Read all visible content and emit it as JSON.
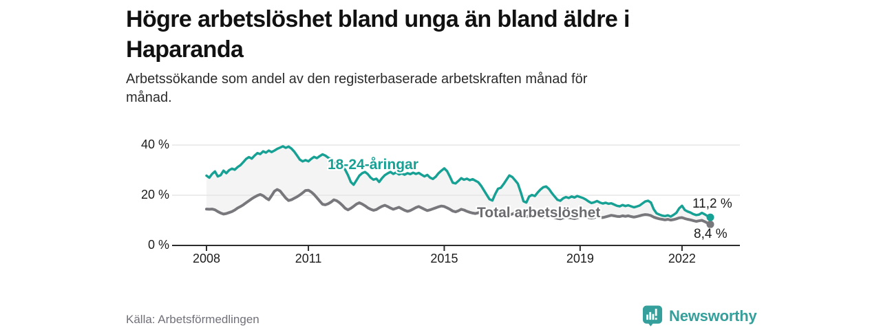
{
  "header": {
    "title_line1": "Högre arbetslöshet bland unga än bland äldre i",
    "title_line2": "Haparanda",
    "subtitle_line1": "Arbetssökande som andel av den registerbaserade arbetskraften månad för",
    "subtitle_line2": "månad."
  },
  "footer": {
    "source": "Källa: Arbetsförmedlingen",
    "brand": "Newsworthy",
    "logo_icon": "bar-chart-pin-icon"
  },
  "colors": {
    "accent_teal": "#17a094",
    "line_gray": "#77777c",
    "band_fill": "#f4f4f4",
    "gridline": "#e5e5e5",
    "axis": "#2b2b2b",
    "label_gray": "#6b6b70",
    "text_dark": "#1a1a1a",
    "source_gray": "#70707a",
    "brand_teal": "#35a09b"
  },
  "chart_data": {
    "type": "line",
    "title": "Högre arbetslöshet bland unga än bland äldre i Haparanda",
    "subtitle": "Arbetssökande som andel av den registerbaserade arbetskraften månad för månad.",
    "unit": "%",
    "grid": "horizontal-only",
    "legend": "inline-labels",
    "x_axis_range": [
      2007.0,
      2023.7
    ],
    "ylim": [
      0,
      44
    ],
    "x_ticks": [
      {
        "label": "2008",
        "value": 2008
      },
      {
        "label": "2011",
        "value": 2011
      },
      {
        "label": "2015",
        "value": 2015
      },
      {
        "label": "2019",
        "value": 2019
      },
      {
        "label": "2022",
        "value": 2022
      }
    ],
    "y_ticks": [
      {
        "label": "40 %",
        "value": 40
      },
      {
        "label": "20 %",
        "value": 20
      },
      {
        "label": "0 %",
        "value": 0
      }
    ],
    "frequency": "monthly",
    "start": "2008-01",
    "end": "2022-11",
    "series": [
      {
        "name": "18-24-åringar",
        "color": "#17a094",
        "end_label": "11,2 %",
        "end_value": 11.2,
        "values": [
          27.8,
          27.0,
          28.5,
          29.5,
          27.5,
          28.0,
          29.8,
          28.8,
          30.0,
          30.6,
          30.2,
          31.2,
          32.0,
          33.2,
          34.5,
          35.2,
          34.6,
          35.8,
          36.8,
          36.4,
          37.5,
          37.0,
          37.8,
          37.2,
          37.8,
          38.5,
          39.0,
          39.5,
          38.9,
          39.4,
          38.6,
          37.4,
          35.8,
          34.2,
          33.5,
          34.0,
          33.5,
          34.5,
          35.3,
          34.8,
          35.6,
          36.3,
          35.8,
          35.0,
          34.4,
          33.0,
          32.2,
          31.8,
          31.4,
          30.2,
          28.0,
          25.3,
          24.2,
          26.0,
          27.8,
          28.8,
          29.3,
          28.4,
          27.0,
          26.2,
          26.6,
          25.3,
          26.8,
          28.0,
          28.7,
          29.3,
          28.5,
          29.1,
          28.3,
          28.7,
          28.2,
          28.8,
          28.4,
          29.0,
          28.5,
          28.9,
          28.2,
          27.5,
          28.1,
          27.0,
          26.5,
          27.4,
          28.8,
          29.8,
          30.7,
          29.6,
          27.4,
          25.0,
          24.7,
          25.7,
          26.8,
          26.2,
          26.6,
          26.0,
          26.4,
          25.8,
          25.2,
          23.8,
          22.0,
          20.2,
          18.4,
          17.9,
          20.5,
          22.6,
          23.0,
          24.5,
          26.2,
          27.9,
          27.3,
          26.0,
          24.6,
          21.3,
          17.6,
          17.1,
          19.5,
          20.1,
          19.7,
          21.1,
          22.3,
          23.2,
          23.5,
          22.5,
          20.9,
          19.5,
          18.2,
          17.8,
          18.8,
          19.3,
          18.9,
          19.5,
          19.1,
          19.7,
          19.3,
          18.9,
          18.3,
          17.5,
          16.9,
          17.2,
          17.7,
          17.1,
          16.7,
          17.0,
          16.6,
          16.8,
          16.3,
          15.8,
          15.6,
          16.1,
          15.7,
          16.0,
          15.6,
          15.2,
          15.5,
          15.9,
          16.7,
          17.5,
          17.8,
          17.1,
          14.4,
          12.8,
          12.3,
          11.9,
          11.7,
          12.0,
          11.5,
          12.2,
          13.0,
          14.8,
          15.8,
          14.1,
          13.5,
          13.1,
          12.5,
          12.1,
          12.3,
          13.0,
          12.4,
          11.7,
          11.2
        ]
      },
      {
        "name": "Total arbetslöshet",
        "color": "#77777c",
        "end_label": "8,4 %",
        "end_value": 8.4,
        "values": [
          14.5,
          14.4,
          14.5,
          14.2,
          13.5,
          12.9,
          12.5,
          12.7,
          13.1,
          13.5,
          14.1,
          14.9,
          15.5,
          16.2,
          17.0,
          17.8,
          18.6,
          19.3,
          19.9,
          20.3,
          19.8,
          18.9,
          18.2,
          19.8,
          21.6,
          22.3,
          21.7,
          20.3,
          18.9,
          17.9,
          18.2,
          18.8,
          19.4,
          20.1,
          21.0,
          21.9,
          22.0,
          21.3,
          20.3,
          19.0,
          17.7,
          16.4,
          16.2,
          16.6,
          17.3,
          18.2,
          17.8,
          17.0,
          16.0,
          14.8,
          14.2,
          14.8,
          15.6,
          16.5,
          17.0,
          16.5,
          15.8,
          15.0,
          14.4,
          14.0,
          14.3,
          15.0,
          15.6,
          16.0,
          15.5,
          14.9,
          14.4,
          14.8,
          15.2,
          14.6,
          14.0,
          13.6,
          13.9,
          14.5,
          15.1,
          15.5,
          15.0,
          14.4,
          13.9,
          14.2,
          14.6,
          15.0,
          15.4,
          15.7,
          15.5,
          15.0,
          14.4,
          13.7,
          13.4,
          13.8,
          14.4,
          14.1,
          13.6,
          13.2,
          12.9,
          12.7,
          13.0,
          13.5,
          13.9,
          13.5,
          13.0,
          12.7,
          13.2,
          13.7,
          13.3,
          12.9,
          12.5,
          12.2,
          12.5,
          12.9,
          12.6,
          12.1,
          11.7,
          11.4,
          11.9,
          12.3,
          12.0,
          11.7,
          11.4,
          11.2,
          11.5,
          11.8,
          11.5,
          11.1,
          10.8,
          10.6,
          11.0,
          11.4,
          11.1,
          10.9,
          10.7,
          11.0,
          11.3,
          11.6,
          11.4,
          11.1,
          10.9,
          11.1,
          11.5,
          11.3,
          11.1,
          11.4,
          11.7,
          12.0,
          11.8,
          11.6,
          11.5,
          11.8,
          11.6,
          11.8,
          11.5,
          11.3,
          11.5,
          11.8,
          12.1,
          12.3,
          12.2,
          11.9,
          11.3,
          10.9,
          10.6,
          10.4,
          10.2,
          10.4,
          10.1,
          10.3,
          10.6,
          11.0,
          11.1,
          10.7,
          10.4,
          10.2,
          9.9,
          9.6,
          9.8,
          10.0,
          9.5,
          8.9,
          8.4
        ]
      }
    ]
  }
}
